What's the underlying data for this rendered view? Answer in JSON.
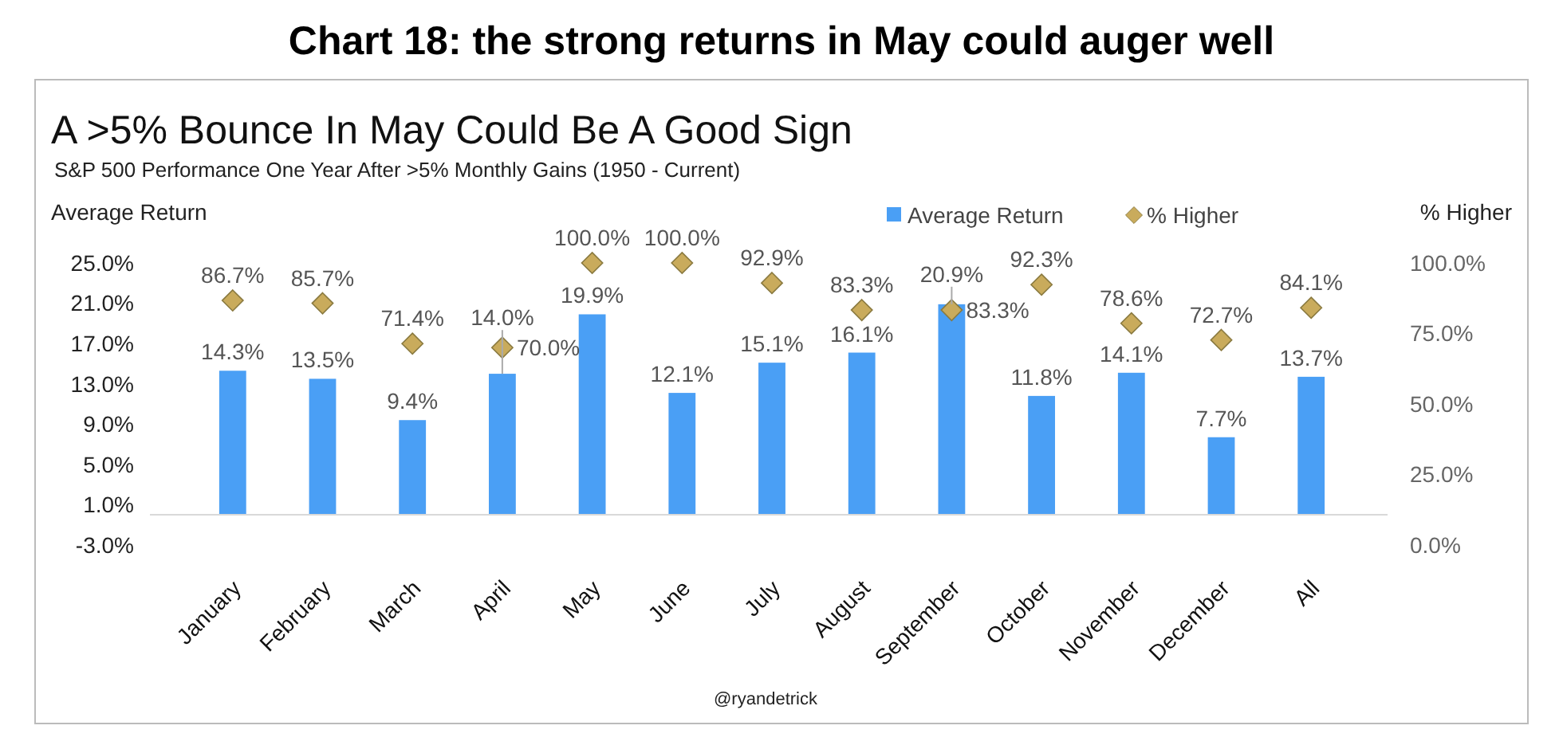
{
  "chart_data": {
    "type": "bar",
    "title": "Chart 18: the strong returns in May could auger well",
    "subtitle": "A >5% Bounce In May Could Be A Good Sign",
    "ylabel": "Average Return",
    "y2label": "% Higher",
    "annotations": [
      "S&P 500 Performance One Year After >5% Monthly Gains (1950 - Current)",
      "@ryandetrick"
    ],
    "categories": [
      "January",
      "February",
      "March",
      "April",
      "May",
      "June",
      "July",
      "August",
      "September",
      "October",
      "November",
      "December",
      "All"
    ],
    "series": [
      {
        "name": "Average Return",
        "color": "#4a9ff5",
        "values": [
          14.3,
          13.5,
          9.4,
          14.0,
          19.9,
          12.1,
          15.1,
          16.1,
          20.9,
          11.8,
          14.1,
          7.7,
          13.7
        ],
        "value_labels": [
          "14.3%",
          "13.5%",
          "9.4%",
          "14.0%",
          "19.9%",
          "12.1%",
          "15.1%",
          "16.1%",
          "20.9%",
          "11.8%",
          "14.1%",
          "7.7%",
          "13.7%"
        ]
      },
      {
        "name": "% Higher",
        "type": "scatter",
        "axis": "y2",
        "marker": "diamond",
        "color": "#c9ab5c",
        "values": [
          86.7,
          85.7,
          71.4,
          70.0,
          100.0,
          100.0,
          92.9,
          83.3,
          83.3,
          92.3,
          78.6,
          72.7,
          84.1
        ],
        "value_labels": [
          "86.7%",
          "85.7%",
          "71.4%",
          "70.0%",
          "100.0%",
          "100.0%",
          "92.9%",
          "83.3%",
          "83.3%",
          "92.3%",
          "78.6%",
          "72.7%",
          "84.1%"
        ]
      }
    ],
    "ylim": [
      -3,
      25
    ],
    "yticks": [
      {
        "value": -3,
        "label": "-3.0%"
      },
      {
        "value": 1,
        "label": "1.0%"
      },
      {
        "value": 5,
        "label": "5.0%"
      },
      {
        "value": 9,
        "label": "9.0%"
      },
      {
        "value": 13,
        "label": "13.0%"
      },
      {
        "value": 17,
        "label": "17.0%"
      },
      {
        "value": 21,
        "label": "21.0%"
      },
      {
        "value": 25,
        "label": "25.0%"
      }
    ],
    "y2lim": [
      0,
      100
    ],
    "y2ticks": [
      {
        "value": 0,
        "label": "0.0%"
      },
      {
        "value": 25,
        "label": "25.0%"
      },
      {
        "value": 50,
        "label": "50.0%"
      },
      {
        "value": 75,
        "label": "75.0%"
      },
      {
        "value": 100,
        "label": "100.0%"
      }
    ],
    "legend": "top",
    "grid": false
  }
}
